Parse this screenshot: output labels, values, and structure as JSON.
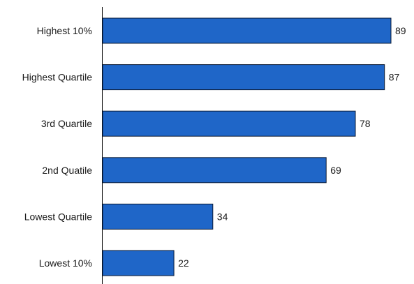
{
  "chart_data": {
    "type": "bar",
    "orientation": "horizontal",
    "categories": [
      "Highest 10%",
      "Highest Quartile",
      "3rd Quartile",
      "2nd Quatile",
      "Lowest Quartile",
      "Lowest 10%"
    ],
    "values": [
      89,
      87,
      78,
      69,
      34,
      22
    ],
    "title": "",
    "xlabel": "",
    "ylabel": "",
    "xlim": [
      0,
      89
    ],
    "grid": false,
    "data_labels": true,
    "bar_color": "#1f66c8"
  }
}
